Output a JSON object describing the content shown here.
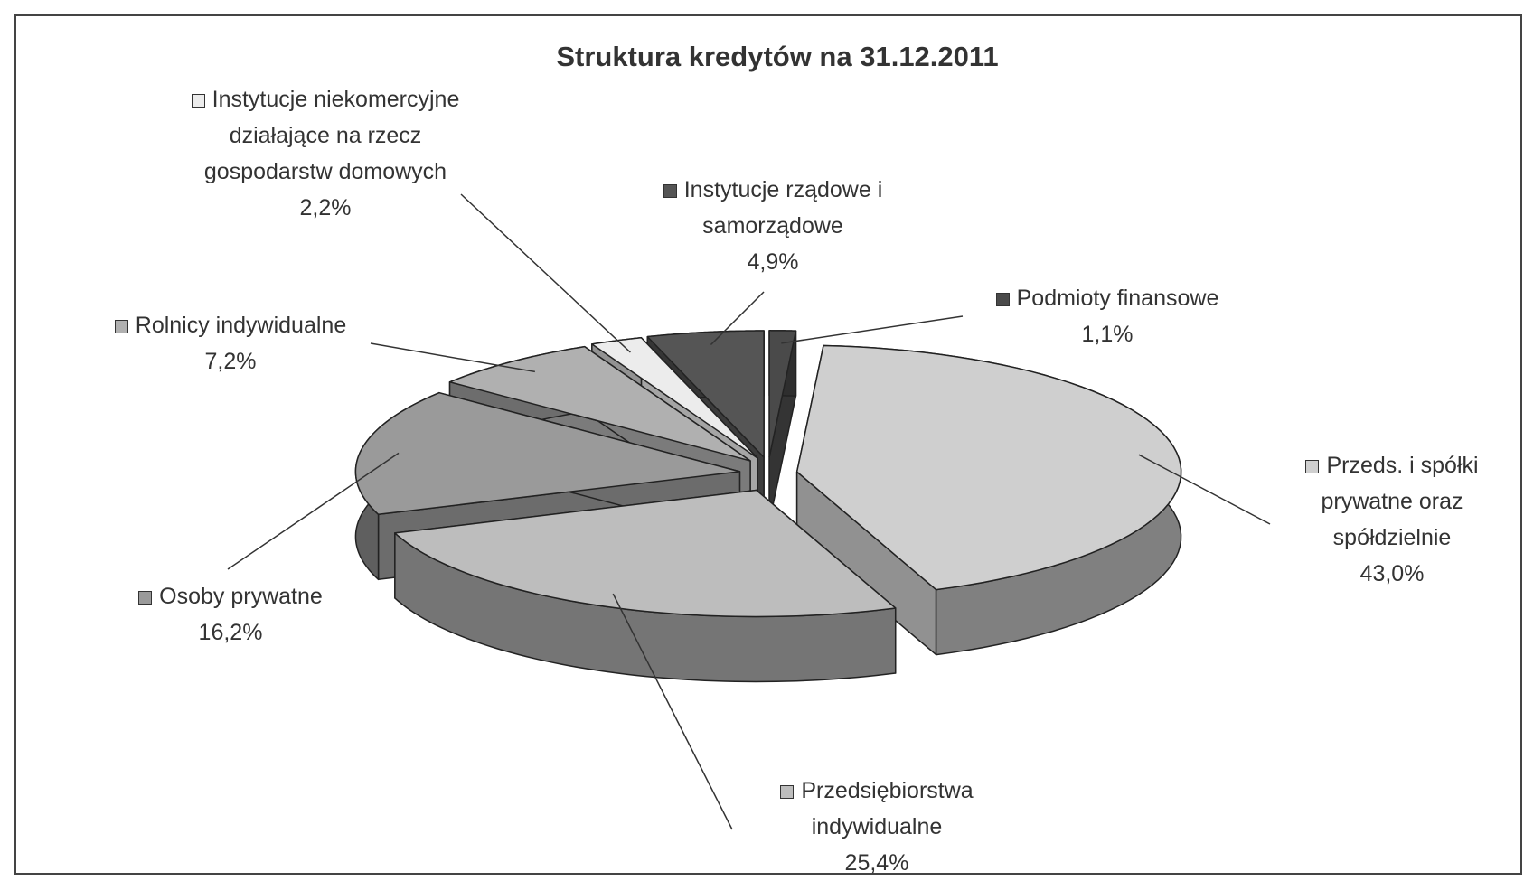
{
  "chart_data": {
    "type": "pie",
    "title": "Struktura kredytów na 31.12.2011",
    "categories": [
      "Podmioty finansowe",
      "Przeds. i spółki prywatne oraz spółdzielnie",
      "Przedsiębiorstwa indywidualne",
      "Osoby prywatne",
      "Rolnicy indywidualne",
      "Instytucje niekomercyjne działające na rzecz gospodarstw domowych",
      "Instytucje rządowe i samorządowe"
    ],
    "values": [
      1.1,
      43.0,
      25.4,
      16.2,
      7.2,
      2.2,
      4.9
    ],
    "value_labels": [
      "1,1%",
      "43,0%",
      "25,4%",
      "16,2%",
      "7,2%",
      "2,2%",
      "4,9%"
    ],
    "colors": [
      "#4a4a4a",
      "#cfcfcf",
      "#bdbdbd",
      "#9a9a9a",
      "#b0b0b0",
      "#ececec",
      "#555555"
    ]
  }
}
